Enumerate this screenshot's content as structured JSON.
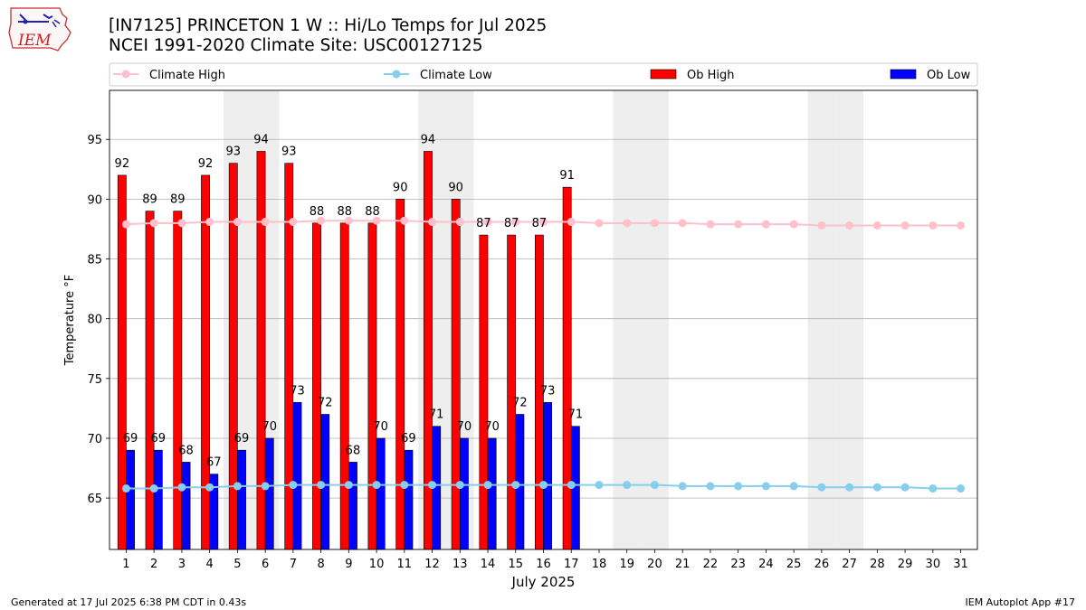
{
  "header": {
    "title_line1": "[IN7125] PRINCETON 1 W :: Hi/Lo Temps for Jul 2025",
    "title_line2": "NCEI 1991-2020 Climate Site: USC00127125",
    "logo_text": "IEM"
  },
  "footer": {
    "left": "Generated at 17 Jul 2025 6:38 PM CDT in 0.43s",
    "right": "IEM Autoplot App #17"
  },
  "colors": {
    "ob_high": "#ff0000",
    "ob_low": "#0000ff",
    "climate_high": "#ffc0cb",
    "climate_low": "#87ceeb",
    "weekend_shade": "#eeeeee",
    "grid": "#b0b0b0"
  },
  "chart_data": {
    "type": "bar",
    "xlabel": "July 2025",
    "ylabel": "Temperature °F",
    "ylim": [
      60.7,
      99.1
    ],
    "yticks": [
      65,
      70,
      75,
      80,
      85,
      90,
      95
    ],
    "grid": "horizontal",
    "legend_position": "top",
    "days": [
      1,
      2,
      3,
      4,
      5,
      6,
      7,
      8,
      9,
      10,
      11,
      12,
      13,
      14,
      15,
      16,
      17,
      18,
      19,
      20,
      21,
      22,
      23,
      24,
      25,
      26,
      27,
      28,
      29,
      30,
      31
    ],
    "shaded_days": [
      5,
      6,
      12,
      13,
      19,
      20,
      26,
      27
    ],
    "series": [
      {
        "name": "Climate High",
        "kind": "line",
        "values": [
          87.9,
          88.0,
          88.0,
          88.1,
          88.1,
          88.1,
          88.1,
          88.2,
          88.2,
          88.2,
          88.2,
          88.1,
          88.1,
          88.1,
          88.1,
          88.1,
          88.1,
          88.0,
          88.0,
          88.0,
          88.0,
          87.9,
          87.9,
          87.9,
          87.9,
          87.8,
          87.8,
          87.8,
          87.8,
          87.8,
          87.8
        ]
      },
      {
        "name": "Climate Low",
        "kind": "line",
        "values": [
          65.8,
          65.8,
          65.9,
          65.9,
          66.0,
          66.0,
          66.1,
          66.1,
          66.1,
          66.1,
          66.1,
          66.1,
          66.1,
          66.1,
          66.1,
          66.1,
          66.1,
          66.1,
          66.1,
          66.1,
          66.0,
          66.0,
          66.0,
          66.0,
          66.0,
          65.9,
          65.9,
          65.9,
          65.9,
          65.8,
          65.8
        ]
      },
      {
        "name": "Ob High",
        "kind": "bar",
        "values": [
          92,
          89,
          89,
          92,
          93,
          94,
          93,
          88,
          88,
          88,
          90,
          94,
          90,
          87,
          87,
          87,
          91
        ]
      },
      {
        "name": "Ob Low",
        "kind": "bar",
        "values": [
          69,
          69,
          68,
          67,
          69,
          70,
          73,
          72,
          68,
          70,
          69,
          71,
          70,
          70,
          72,
          73,
          71
        ]
      }
    ]
  }
}
